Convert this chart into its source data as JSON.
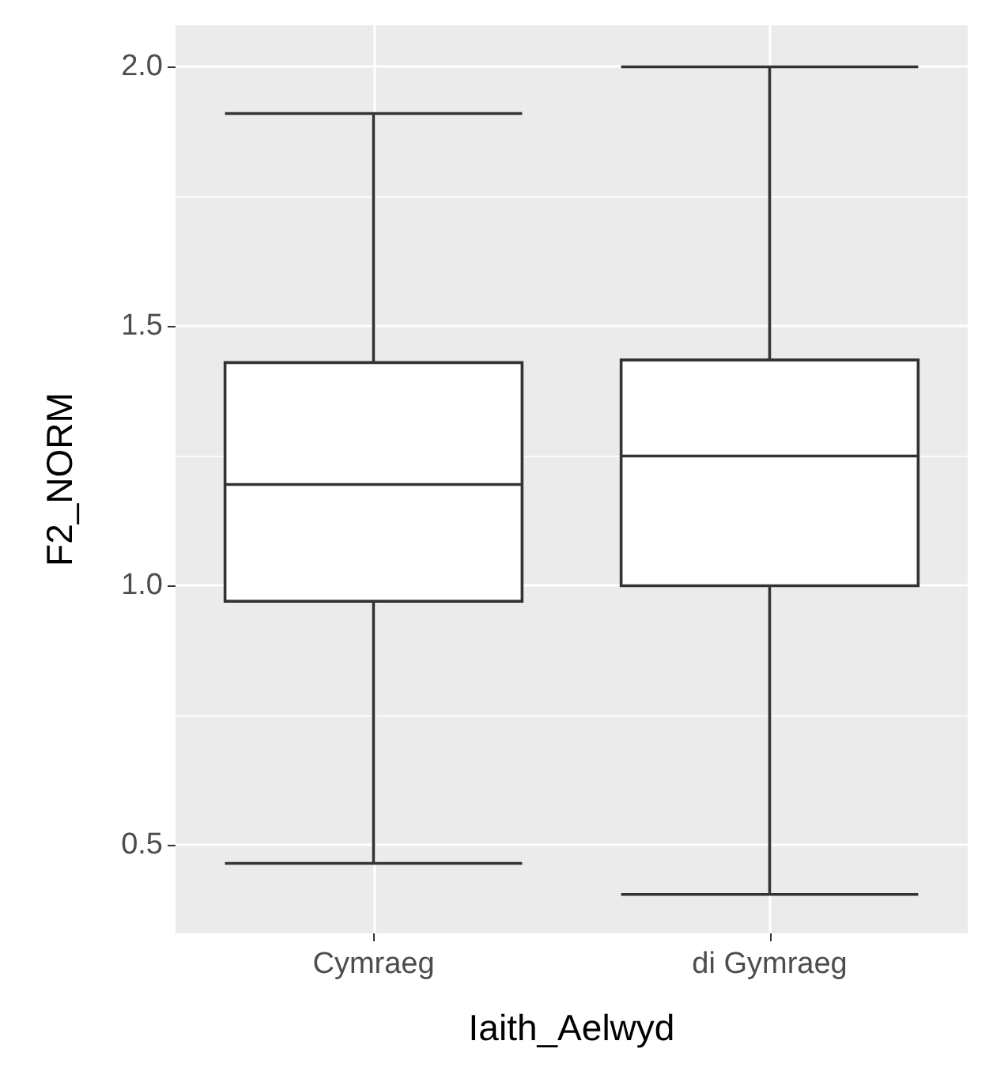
{
  "chart_data": {
    "type": "box",
    "xlabel": "Iaith_Aelwyd",
    "ylabel": "F2_NORM",
    "categories": [
      "Cymraeg",
      "di Gymraeg"
    ],
    "boxes": [
      {
        "low": 0.465,
        "q1": 0.97,
        "median": 1.195,
        "q3": 1.43,
        "high": 1.91
      },
      {
        "low": 0.405,
        "q1": 1.0,
        "median": 1.25,
        "q3": 1.435,
        "high": 2.0
      }
    ],
    "color": "#ffffff",
    "ylim": [
      0.33,
      2.08
    ],
    "yticks": [
      {
        "value": 0.5,
        "label": "0.5"
      },
      {
        "value": 1.0,
        "label": "1.0"
      },
      {
        "value": 1.5,
        "label": "1.5"
      },
      {
        "value": 2.0,
        "label": "2.0"
      }
    ],
    "grid": true
  }
}
